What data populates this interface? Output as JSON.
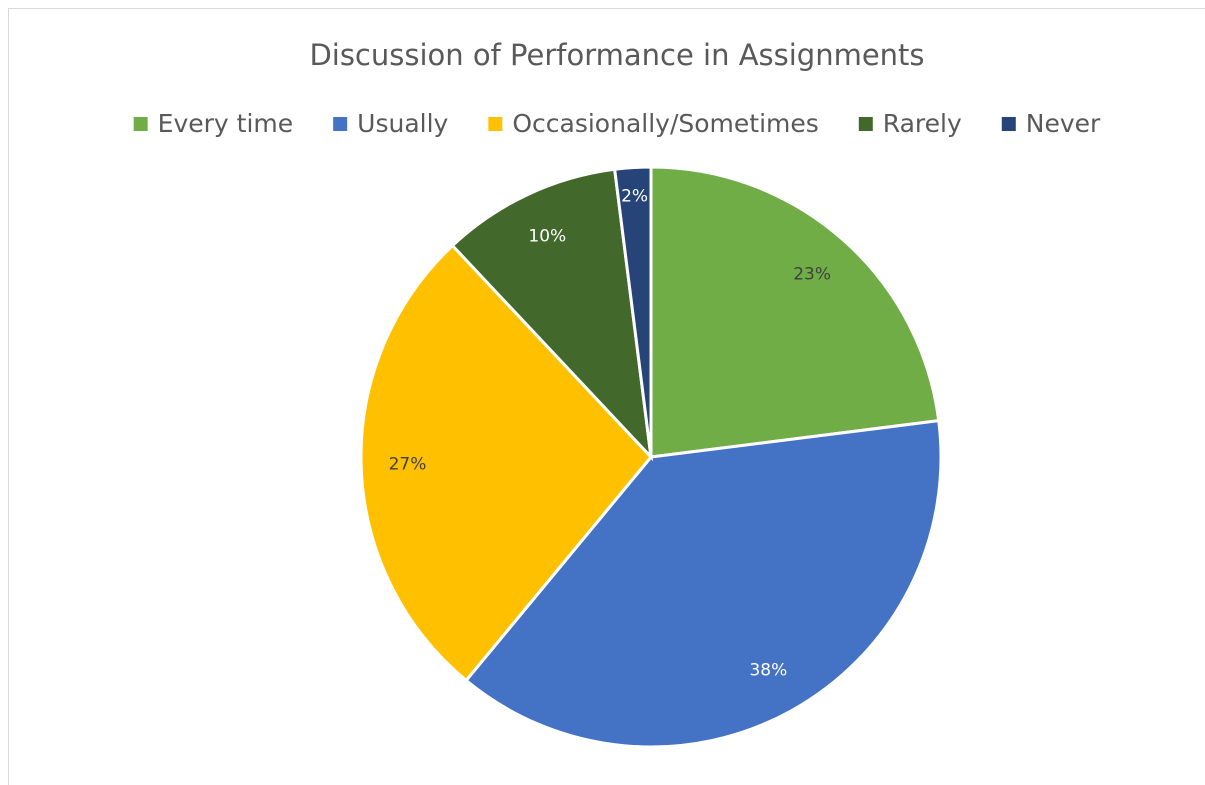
{
  "chart_data": {
    "type": "pie",
    "title": "Discussion of Performance in Assignments",
    "categories": [
      "Every time",
      "Usually",
      "Occasionally/Sometimes",
      "Rarely",
      "Never"
    ],
    "values": [
      23,
      38,
      27,
      10,
      2
    ],
    "value_labels": [
      "23%",
      "38%",
      "27%",
      "10%",
      "2%"
    ],
    "colors": [
      "#70ad47",
      "#4472c4",
      "#ffc000",
      "#43682b",
      "#264478"
    ],
    "legend": "top"
  }
}
